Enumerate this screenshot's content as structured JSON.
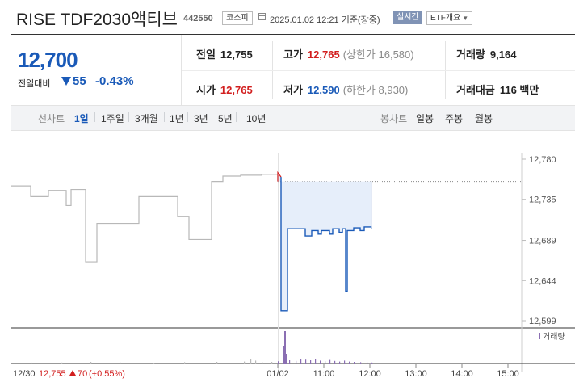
{
  "header": {
    "title": "RISE TDF2030액티브",
    "code": "442550",
    "market": "코스피",
    "datetime": "2025.01.02 12:21 기준(장중)",
    "live_label": "실시간",
    "etf_label": "ETF개요"
  },
  "summary": {
    "price": "12,700",
    "change_label": "전일대비",
    "change": "55",
    "change_pct": "-0.43%",
    "prev_close": {
      "label": "전일",
      "value": "12,755"
    },
    "open": {
      "label": "시가",
      "value": "12,765"
    },
    "high": {
      "label": "고가",
      "value": "12,765",
      "sub": "(상한가 16,580)"
    },
    "low": {
      "label": "저가",
      "value": "12,590",
      "sub": "(하한가 8,930)"
    },
    "volume": {
      "label": "거래량",
      "value": "9,164"
    },
    "amount": {
      "label": "거래대금",
      "value": "116 백만"
    }
  },
  "toolbar": {
    "line_label": "선차트",
    "periods": [
      "1일",
      "1주일",
      "3개월",
      "1년",
      "3년",
      "5년",
      "10년"
    ],
    "selected_period": "1일",
    "candle_label": "봉차트",
    "candles": [
      "일봉",
      "주봉",
      "월봉"
    ]
  },
  "colors": {
    "down": "#1a5ab8",
    "up": "#d21e1e",
    "line": "#b8b8b8",
    "fill": "#e6eefa",
    "volume": "#8b6fb3"
  },
  "chart_data": {
    "type": "line",
    "y_ticks": [
      "12,780",
      "12,735",
      "12,689",
      "12,644",
      "12,599"
    ],
    "ylim": [
      12599,
      12780
    ],
    "x_ticks": [
      "12/30",
      "01/02",
      "11:00",
      "12:00",
      "13:00",
      "14:00",
      "15:00"
    ],
    "prev_close": 12755,
    "volume_legend": "거래량",
    "footer_prev": {
      "date": "12/30",
      "price": "12,755",
      "change": "70",
      "change_pct": "(+0.55%)"
    },
    "previous_days_series": [
      [
        0,
        12750
      ],
      [
        24,
        12750
      ],
      [
        24,
        12738
      ],
      [
        46,
        12738
      ],
      [
        46,
        12745
      ],
      [
        68,
        12745
      ],
      [
        68,
        12728
      ],
      [
        74,
        12728
      ],
      [
        74,
        12746
      ],
      [
        92,
        12746
      ],
      [
        92,
        12665
      ],
      [
        106,
        12665
      ],
      [
        106,
        12708
      ],
      [
        158,
        12708
      ],
      [
        158,
        12738
      ],
      [
        206,
        12738
      ],
      [
        206,
        12716
      ],
      [
        220,
        12716
      ],
      [
        220,
        12690
      ],
      [
        248,
        12690
      ],
      [
        248,
        12755
      ],
      [
        262,
        12755
      ],
      [
        262,
        12761
      ],
      [
        284,
        12761
      ],
      [
        284,
        12762
      ],
      [
        310,
        12762
      ],
      [
        310,
        12763
      ],
      [
        330,
        12763
      ],
      [
        330,
        12755
      ]
    ],
    "today_series": [
      [
        330,
        12765
      ],
      [
        334,
        12760
      ],
      [
        334,
        12610
      ],
      [
        342,
        12610
      ],
      [
        342,
        12702
      ],
      [
        358,
        12702
      ],
      [
        364,
        12702
      ],
      [
        364,
        12694
      ],
      [
        372,
        12694
      ],
      [
        372,
        12700
      ],
      [
        380,
        12700
      ],
      [
        380,
        12696
      ],
      [
        384,
        12696
      ],
      [
        384,
        12700
      ],
      [
        394,
        12700
      ],
      [
        394,
        12696
      ],
      [
        398,
        12696
      ],
      [
        398,
        12702
      ],
      [
        406,
        12702
      ],
      [
        406,
        12698
      ],
      [
        410,
        12698
      ],
      [
        410,
        12702
      ],
      [
        414,
        12702
      ],
      [
        414,
        12632
      ],
      [
        416,
        12632
      ],
      [
        416,
        12700
      ],
      [
        424,
        12700
      ],
      [
        424,
        12703
      ],
      [
        432,
        12703
      ],
      [
        432,
        12700
      ],
      [
        437,
        12700
      ],
      [
        437,
        12704
      ],
      [
        446,
        12704
      ],
      [
        446,
        12702
      ]
    ],
    "volume": [
      [
        24,
        0.03
      ],
      [
        62,
        0.03
      ],
      [
        98,
        0.05
      ],
      [
        134,
        0.04
      ],
      [
        176,
        0.02
      ],
      [
        214,
        0.04
      ],
      [
        254,
        0.05
      ],
      [
        288,
        0.06
      ],
      [
        296,
        0.15
      ],
      [
        302,
        0.09
      ],
      [
        310,
        0.05
      ],
      [
        322,
        0.05
      ],
      [
        330,
        0.07
      ],
      [
        336,
        0.55
      ],
      [
        338,
        1.0
      ],
      [
        340,
        0.3
      ],
      [
        344,
        0.1
      ],
      [
        352,
        0.08
      ],
      [
        358,
        0.15
      ],
      [
        364,
        0.12
      ],
      [
        370,
        0.1
      ],
      [
        376,
        0.14
      ],
      [
        382,
        0.09
      ],
      [
        388,
        0.07
      ],
      [
        394,
        0.11
      ],
      [
        400,
        0.08
      ],
      [
        406,
        0.06
      ],
      [
        412,
        0.09
      ],
      [
        418,
        0.06
      ],
      [
        424,
        0.05
      ],
      [
        432,
        0.04
      ],
      [
        440,
        0.03
      ],
      [
        446,
        0.03
      ]
    ]
  }
}
